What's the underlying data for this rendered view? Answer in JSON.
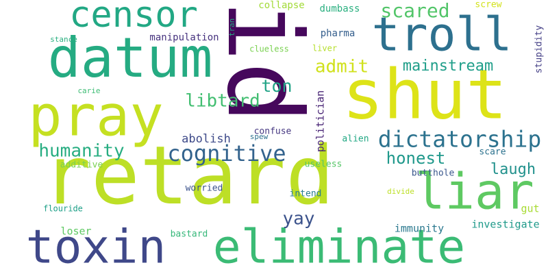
{
  "words": [
    {
      "text": "retard",
      "color": "#bddf26"
    },
    {
      "text": "shut",
      "color": "#dde318"
    },
    {
      "text": "id",
      "color": "#46085c"
    },
    {
      "text": "eliminate",
      "color": "#3bbb75"
    },
    {
      "text": "datum",
      "color": "#25ab82"
    },
    {
      "text": "pray",
      "color": "#c5e021"
    },
    {
      "text": "toxin",
      "color": "#3f4889"
    },
    {
      "text": "troll",
      "color": "#2d708e"
    },
    {
      "text": "censor",
      "color": "#22a884"
    },
    {
      "text": "liar",
      "color": "#5ec962"
    },
    {
      "text": "dictatorship",
      "color": "#2c728e"
    },
    {
      "text": "cognitive",
      "color": "#33638d"
    },
    {
      "text": "humanity",
      "color": "#27ad81"
    },
    {
      "text": "scared",
      "color": "#52c569"
    },
    {
      "text": "libtard",
      "color": "#42be71"
    },
    {
      "text": "honest",
      "color": "#1f988b"
    },
    {
      "text": "mainstream",
      "color": "#1f9e89"
    },
    {
      "text": "admit",
      "color": "#d0e11c"
    },
    {
      "text": "laugh",
      "color": "#21918c"
    },
    {
      "text": "ton",
      "color": "#20a386"
    },
    {
      "text": "yay",
      "color": "#3b528b"
    },
    {
      "text": "abolish",
      "color": "#3e4a89"
    },
    {
      "text": "politician",
      "color": "#482475"
    },
    {
      "text": "manipulation",
      "color": "#46327e"
    },
    {
      "text": "collapse",
      "color": "#a2da37"
    },
    {
      "text": "dumbass",
      "color": "#29af7f"
    },
    {
      "text": "pharma",
      "color": "#355f8d"
    },
    {
      "text": "screw",
      "color": "#d2e21b"
    },
    {
      "text": "stupidity",
      "color": "#433e85"
    },
    {
      "text": "tran",
      "color": "#25ab82"
    },
    {
      "text": "clueless",
      "color": "#7ad151"
    },
    {
      "text": "liver",
      "color": "#b5de2b"
    },
    {
      "text": "stance",
      "color": "#29af7f"
    },
    {
      "text": "carie",
      "color": "#3dbc74"
    },
    {
      "text": "confuse",
      "color": "#453781"
    },
    {
      "text": "spew",
      "color": "#2d708e"
    },
    {
      "text": "alien",
      "color": "#22a884"
    },
    {
      "text": "scare",
      "color": "#2c728e"
    },
    {
      "text": "useless",
      "color": "#56c667"
    },
    {
      "text": "additive",
      "color": "#7ad151"
    },
    {
      "text": "butthole",
      "color": "#39568c"
    },
    {
      "text": "worried",
      "color": "#3b528b"
    },
    {
      "text": "intend",
      "color": "#287d8e"
    },
    {
      "text": "divide",
      "color": "#bddf26"
    },
    {
      "text": "gut",
      "color": "#a8db34"
    },
    {
      "text": "flouride",
      "color": "#1fa088"
    },
    {
      "text": "investigate",
      "color": "#1f9a8a"
    },
    {
      "text": "loser",
      "color": "#5ec962"
    },
    {
      "text": "immunity",
      "color": "#2a788e"
    },
    {
      "text": "bastard",
      "color": "#35b779"
    }
  ]
}
